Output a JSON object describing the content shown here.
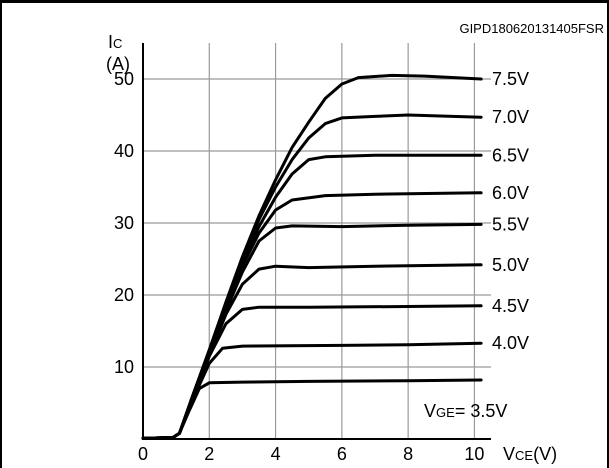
{
  "figure_code": "GIPD180620131405FSR",
  "chart_data": {
    "type": "line",
    "xlabel_main": "V",
    "xlabel_sub": "CE",
    "xlabel_unit": "(V)",
    "ylabel_main": "I",
    "ylabel_sub": "C",
    "ylabel_unit": "(A)",
    "xlim": [
      0,
      10.5
    ],
    "ylim": [
      0,
      55
    ],
    "xticks": [
      0,
      2,
      4,
      6,
      8,
      10
    ],
    "yticks": [
      0,
      10,
      20,
      30,
      40,
      50
    ],
    "grid": true,
    "series_label_prefix_main": "V",
    "series_label_prefix_sub": "GE",
    "series": [
      {
        "name": "3.5V",
        "label": "= 3.5V",
        "points": [
          [
            0,
            0.1
          ],
          [
            0.9,
            0.2
          ],
          [
            1.1,
            0.8
          ],
          [
            1.4,
            4.0
          ],
          [
            1.7,
            7.0
          ],
          [
            2.0,
            7.8
          ],
          [
            3,
            7.9
          ],
          [
            5,
            8.0
          ],
          [
            8,
            8.1
          ],
          [
            10.2,
            8.2
          ]
        ]
      },
      {
        "name": "4.0V",
        "label": "4.0V",
        "points": [
          [
            0,
            0.1
          ],
          [
            0.9,
            0.2
          ],
          [
            1.1,
            0.8
          ],
          [
            1.5,
            5.5
          ],
          [
            2.0,
            10.5
          ],
          [
            2.4,
            12.6
          ],
          [
            3,
            12.9
          ],
          [
            6,
            13.0
          ],
          [
            8,
            13.1
          ],
          [
            10.2,
            13.3
          ]
        ]
      },
      {
        "name": "4.5V",
        "label": "4.5V",
        "points": [
          [
            0,
            0.1
          ],
          [
            0.9,
            0.2
          ],
          [
            1.1,
            0.8
          ],
          [
            1.5,
            5.8
          ],
          [
            2.0,
            11.5
          ],
          [
            2.5,
            16.0
          ],
          [
            3.0,
            18.0
          ],
          [
            3.5,
            18.3
          ],
          [
            5,
            18.3
          ],
          [
            8,
            18.4
          ],
          [
            10.2,
            18.5
          ]
        ]
      },
      {
        "name": "5.0V",
        "label": "5.0V",
        "points": [
          [
            0,
            0.1
          ],
          [
            0.9,
            0.2
          ],
          [
            1.1,
            0.8
          ],
          [
            1.5,
            5.8
          ],
          [
            2.0,
            11.6
          ],
          [
            2.5,
            17.3
          ],
          [
            3.0,
            21.5
          ],
          [
            3.5,
            23.6
          ],
          [
            4.0,
            24.0
          ],
          [
            5,
            23.8
          ],
          [
            7,
            24.0
          ],
          [
            10.2,
            24.2
          ]
        ]
      },
      {
        "name": "5.5V",
        "label": "5.5V",
        "points": [
          [
            0,
            0.1
          ],
          [
            0.9,
            0.2
          ],
          [
            1.1,
            0.8
          ],
          [
            1.5,
            5.9
          ],
          [
            2.0,
            11.8
          ],
          [
            2.5,
            17.8
          ],
          [
            3.0,
            23.2
          ],
          [
            3.5,
            27.5
          ],
          [
            4.0,
            29.3
          ],
          [
            4.5,
            29.6
          ],
          [
            6,
            29.5
          ],
          [
            8,
            29.7
          ],
          [
            10.2,
            29.8
          ]
        ]
      },
      {
        "name": "6.0V",
        "label": "6.0V",
        "points": [
          [
            0,
            0.1
          ],
          [
            0.9,
            0.2
          ],
          [
            1.1,
            0.8
          ],
          [
            1.5,
            5.9
          ],
          [
            2.0,
            12.0
          ],
          [
            2.5,
            18.0
          ],
          [
            3.0,
            24.0
          ],
          [
            3.5,
            28.6
          ],
          [
            4.0,
            31.8
          ],
          [
            4.5,
            33.2
          ],
          [
            5.5,
            33.8
          ],
          [
            7,
            34.0
          ],
          [
            10.2,
            34.2
          ]
        ]
      },
      {
        "name": "6.5V",
        "label": "6.5V",
        "points": [
          [
            0,
            0.1
          ],
          [
            0.9,
            0.2
          ],
          [
            1.1,
            0.8
          ],
          [
            1.5,
            6.0
          ],
          [
            2.0,
            12.2
          ],
          [
            2.5,
            18.5
          ],
          [
            3.0,
            24.5
          ],
          [
            3.5,
            29.5
          ],
          [
            4.0,
            33.6
          ],
          [
            4.5,
            36.8
          ],
          [
            5.0,
            38.8
          ],
          [
            5.5,
            39.2
          ],
          [
            7,
            39.4
          ],
          [
            10.2,
            39.4
          ]
        ]
      },
      {
        "name": "7.0V",
        "label": "7.0V",
        "points": [
          [
            0,
            0.1
          ],
          [
            0.9,
            0.2
          ],
          [
            1.1,
            0.8
          ],
          [
            1.5,
            6.0
          ],
          [
            2.0,
            12.3
          ],
          [
            2.5,
            18.8
          ],
          [
            3.0,
            25.0
          ],
          [
            3.5,
            30.5
          ],
          [
            4.0,
            35.0
          ],
          [
            4.5,
            38.8
          ],
          [
            5.0,
            41.8
          ],
          [
            5.5,
            43.8
          ],
          [
            6.0,
            44.6
          ],
          [
            7,
            44.8
          ],
          [
            8,
            45.0
          ],
          [
            10.2,
            44.7
          ]
        ]
      },
      {
        "name": "7.5V",
        "label": "7.5V",
        "points": [
          [
            0,
            0.1
          ],
          [
            0.9,
            0.2
          ],
          [
            1.1,
            0.8
          ],
          [
            1.5,
            6.0
          ],
          [
            2.0,
            12.4
          ],
          [
            2.5,
            19.0
          ],
          [
            3.0,
            25.3
          ],
          [
            3.5,
            31.0
          ],
          [
            4.0,
            36.0
          ],
          [
            4.5,
            40.5
          ],
          [
            5.0,
            44.0
          ],
          [
            5.5,
            47.3
          ],
          [
            6.0,
            49.3
          ],
          [
            6.5,
            50.2
          ],
          [
            7.5,
            50.5
          ],
          [
            8.5,
            50.4
          ],
          [
            10.2,
            50.0
          ]
        ]
      }
    ]
  }
}
